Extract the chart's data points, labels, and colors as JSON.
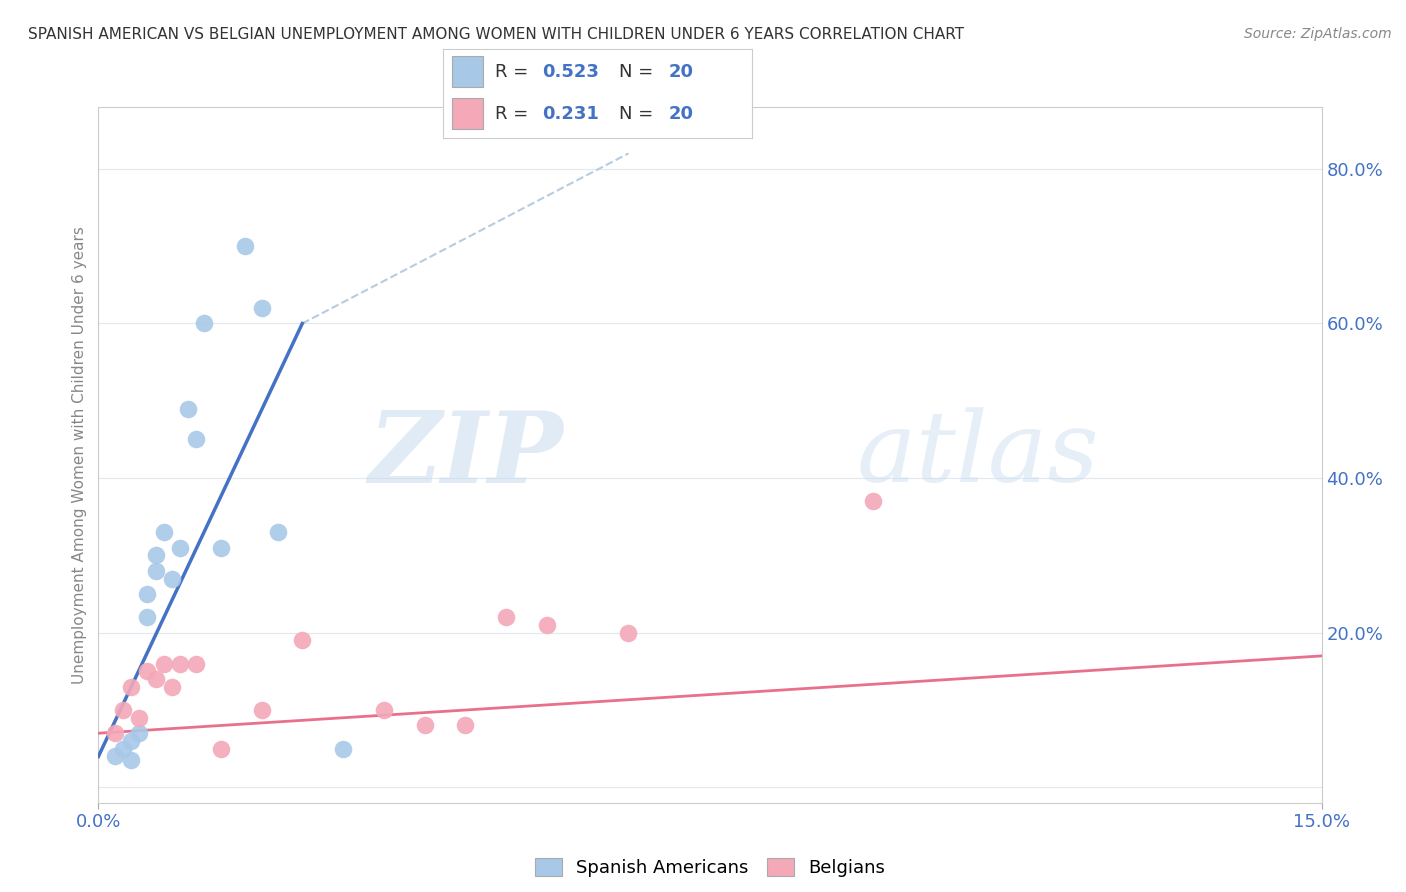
{
  "title": "SPANISH AMERICAN VS BELGIAN UNEMPLOYMENT AMONG WOMEN WITH CHILDREN UNDER 6 YEARS CORRELATION CHART",
  "source": "Source: ZipAtlas.com",
  "ylabel": "Unemployment Among Women with Children Under 6 years",
  "xlim": [
    0.0,
    0.15
  ],
  "ylim": [
    -0.02,
    0.88
  ],
  "yticks": [
    0.0,
    0.2,
    0.4,
    0.6,
    0.8
  ],
  "ytick_labels": [
    "",
    "20.0%",
    "40.0%",
    "60.0%",
    "80.0%"
  ],
  "watermark_zip": "ZIP",
  "watermark_atlas": "atlas",
  "r_blue": "0.523",
  "n_blue": "20",
  "r_pink": "0.231",
  "n_pink": "20",
  "blue_color": "#A8C8E8",
  "pink_color": "#F4A8B8",
  "blue_line_color": "#4472C4",
  "pink_line_color": "#E8708A",
  "diagonal_color": "#B8CCE0",
  "legend_label_blue": "Spanish Americans",
  "legend_label_pink": "Belgians",
  "blue_scatter_x": [
    0.002,
    0.003,
    0.004,
    0.004,
    0.005,
    0.006,
    0.006,
    0.007,
    0.007,
    0.008,
    0.009,
    0.01,
    0.011,
    0.012,
    0.013,
    0.015,
    0.018,
    0.02,
    0.022,
    0.03
  ],
  "blue_scatter_y": [
    0.04,
    0.05,
    0.06,
    0.035,
    0.07,
    0.25,
    0.22,
    0.28,
    0.3,
    0.33,
    0.27,
    0.31,
    0.49,
    0.45,
    0.6,
    0.31,
    0.7,
    0.62,
    0.33,
    0.05
  ],
  "pink_scatter_x": [
    0.002,
    0.003,
    0.004,
    0.005,
    0.006,
    0.007,
    0.008,
    0.009,
    0.01,
    0.012,
    0.015,
    0.02,
    0.025,
    0.035,
    0.04,
    0.045,
    0.05,
    0.055,
    0.065,
    0.095
  ],
  "pink_scatter_y": [
    0.07,
    0.1,
    0.13,
    0.09,
    0.15,
    0.14,
    0.16,
    0.13,
    0.16,
    0.16,
    0.05,
    0.1,
    0.19,
    0.1,
    0.08,
    0.08,
    0.22,
    0.21,
    0.2,
    0.37
  ],
  "blue_line_x": [
    0.0,
    0.025
  ],
  "blue_line_y": [
    0.04,
    0.6
  ],
  "pink_line_x": [
    0.0,
    0.15
  ],
  "pink_line_y": [
    0.07,
    0.17
  ],
  "diag_line_x": [
    0.025,
    0.065
  ],
  "diag_line_y": [
    0.6,
    0.82
  ]
}
